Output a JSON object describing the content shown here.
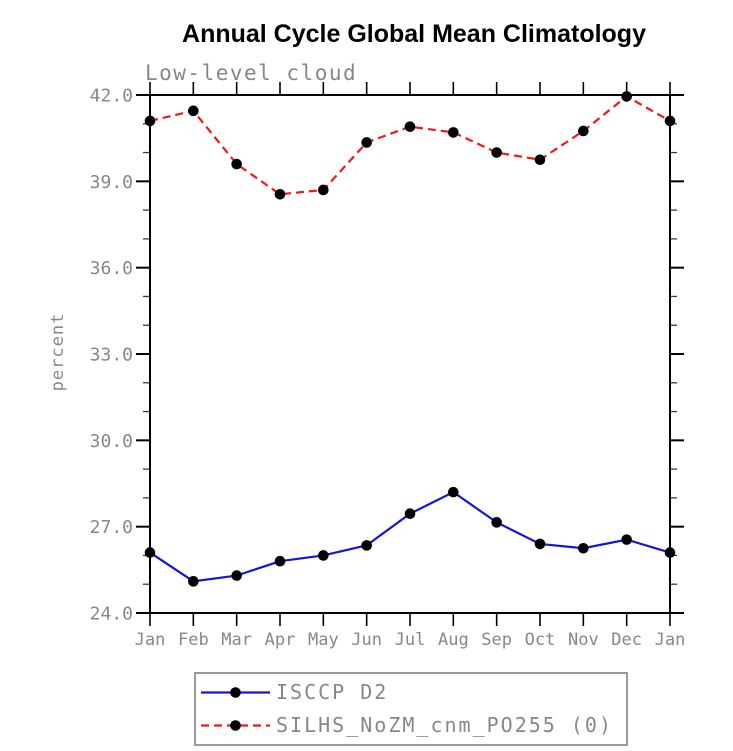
{
  "page": {
    "background": "#ffffff"
  },
  "colors": {
    "axis": "#000000",
    "tick_text": "#878787",
    "legend_border": "#909090",
    "title_text": "#000000",
    "background": "#ffffff"
  },
  "chart_data": {
    "type": "line",
    "title": "Annual Cycle Global Mean Climatology",
    "subtitle": "Low-level cloud",
    "ylabel": "percent",
    "xlabel": "",
    "categories": [
      "Jan",
      "Feb",
      "Mar",
      "Apr",
      "May",
      "Jun",
      "Jul",
      "Aug",
      "Sep",
      "Oct",
      "Nov",
      "Dec",
      "Jan"
    ],
    "ylim": [
      24.0,
      42.0
    ],
    "ytick_major": 3.0,
    "ytick_minor": 1.0,
    "ytick_labels": [
      "24.0",
      "27.0",
      "30.0",
      "33.0",
      "36.0",
      "39.0",
      "42.0"
    ],
    "grid": false,
    "legend_position": "bottom-center-boxed",
    "series": [
      {
        "name": "ISCCP D2",
        "color": "#1515dd",
        "line_style": "solid",
        "marker": "filled-circle",
        "marker_color": "#000000",
        "values": [
          26.1,
          25.1,
          25.3,
          25.8,
          26.0,
          26.35,
          27.45,
          28.2,
          27.15,
          26.4,
          26.25,
          26.55,
          26.1
        ]
      },
      {
        "name": "SILHS_NoZM_cnm_PO255 (0)",
        "color": "#f21818",
        "line_style": "dashed",
        "marker": "filled-circle",
        "marker_color": "#000000",
        "values": [
          41.1,
          41.45,
          39.6,
          38.55,
          38.7,
          40.35,
          40.9,
          40.7,
          40.0,
          39.75,
          40.75,
          41.95,
          41.1
        ]
      }
    ]
  }
}
